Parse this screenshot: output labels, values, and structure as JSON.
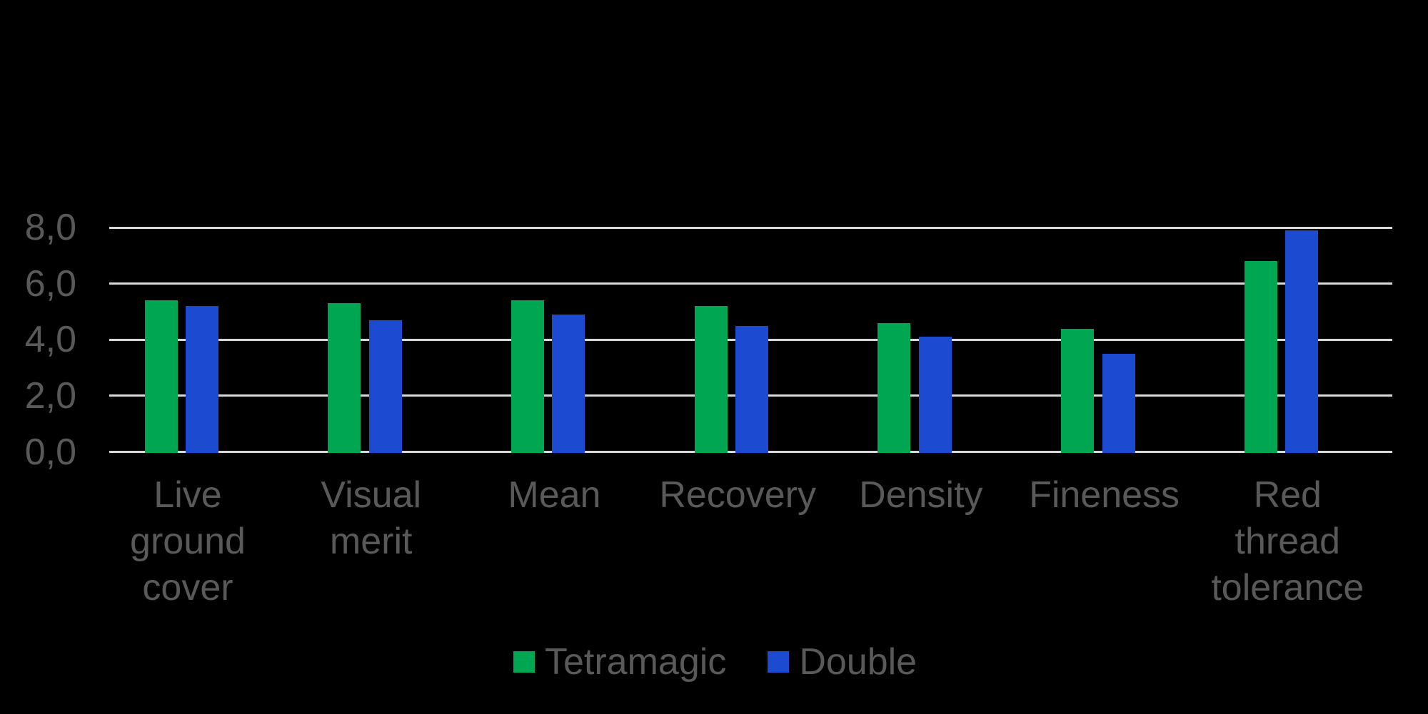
{
  "chart_data": {
    "type": "bar",
    "title": "",
    "categories": [
      "Live ground cover",
      "Visual merit",
      "Mean",
      "Recovery",
      "Density",
      "Fineness",
      "Red thread tolerance"
    ],
    "category_label_lines": [
      [
        "Live",
        "ground",
        "cover"
      ],
      [
        "Visual",
        "merit"
      ],
      [
        "Mean"
      ],
      [
        "Recovery"
      ],
      [
        "Density"
      ],
      [
        "Fineness"
      ],
      [
        "Red",
        "thread",
        "tolerance"
      ]
    ],
    "series": [
      {
        "name": "Tetramagic",
        "color": "#00A651",
        "values": [
          5.4,
          5.3,
          5.4,
          5.2,
          4.6,
          4.4,
          6.8
        ]
      },
      {
        "name": "Double",
        "color": "#1C4BD2",
        "values": [
          5.2,
          4.7,
          4.9,
          4.5,
          4.1,
          3.5,
          7.9
        ]
      }
    ],
    "y_axis": {
      "min": 0,
      "max": 8,
      "tick_interval": 2,
      "tick_labels": [
        "0,0",
        "2,0",
        "4,0",
        "6,0",
        "8,0"
      ],
      "decimal_separator": ","
    },
    "grid": true,
    "legend_position": "bottom",
    "colors": {
      "background": "#000000",
      "gridline": "#D9D9D9",
      "axis_text": "#595959"
    }
  }
}
